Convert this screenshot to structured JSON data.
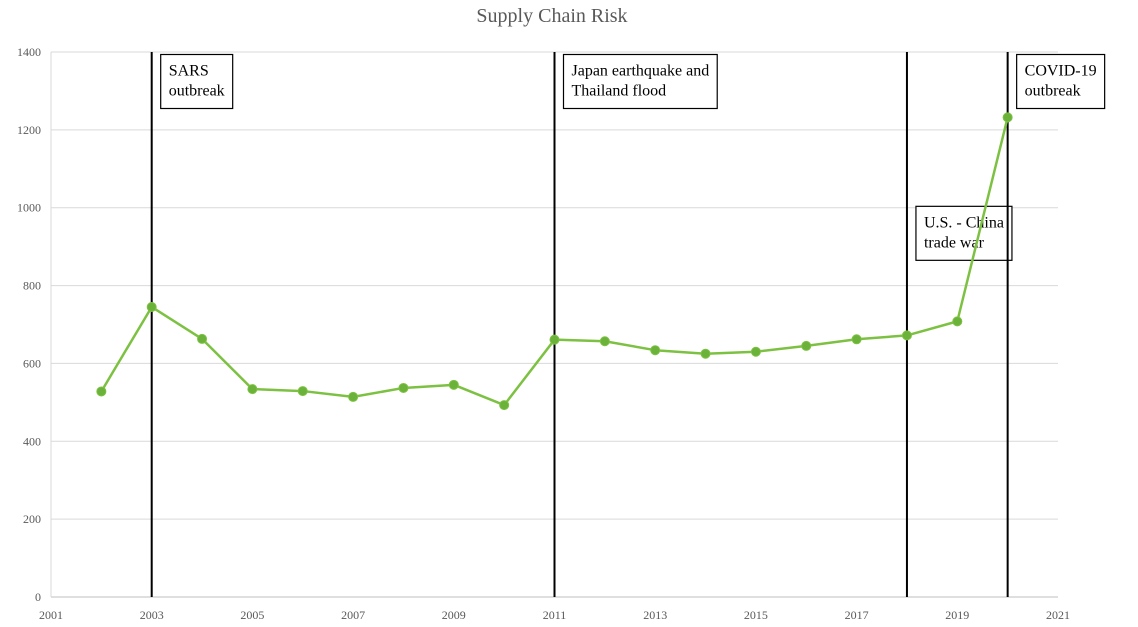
{
  "chart_data": {
    "type": "line",
    "title": "Supply Chain Risk",
    "xlabel": "",
    "ylabel": "",
    "xlim": [
      2001,
      2021
    ],
    "ylim": [
      0,
      1400
    ],
    "x_ticks": [
      2001,
      2003,
      2005,
      2007,
      2009,
      2011,
      2013,
      2015,
      2017,
      2019,
      2021
    ],
    "y_ticks": [
      0,
      200,
      400,
      600,
      800,
      1000,
      1200,
      1400
    ],
    "grid": true,
    "legend": "none",
    "series": [
      {
        "color": "#7dc142",
        "x": [
          2002,
          2003,
          2004,
          2005,
          2006,
          2007,
          2008,
          2009,
          2010,
          2011,
          2012,
          2013,
          2014,
          2015,
          2016,
          2017,
          2018,
          2019,
          2020
        ],
        "y": [
          528,
          745,
          663,
          534,
          529,
          514,
          537,
          545,
          493,
          661,
          657,
          634,
          625,
          630,
          645,
          662,
          672,
          708,
          1232
        ]
      }
    ],
    "events": [
      {
        "x": 2003,
        "lines": [
          "SARS",
          "outbreak"
        ],
        "label_y": 1260
      },
      {
        "x": 2011,
        "lines": [
          "Japan earthquake and",
          "Thailand flood"
        ],
        "label_y": 1260
      },
      {
        "x": 2018,
        "lines": [
          "U.S. - China",
          "trade war"
        ],
        "label_y": 870
      },
      {
        "x": 2020,
        "lines": [
          "COVID-19",
          "outbreak"
        ],
        "label_y": 1260
      }
    ]
  }
}
